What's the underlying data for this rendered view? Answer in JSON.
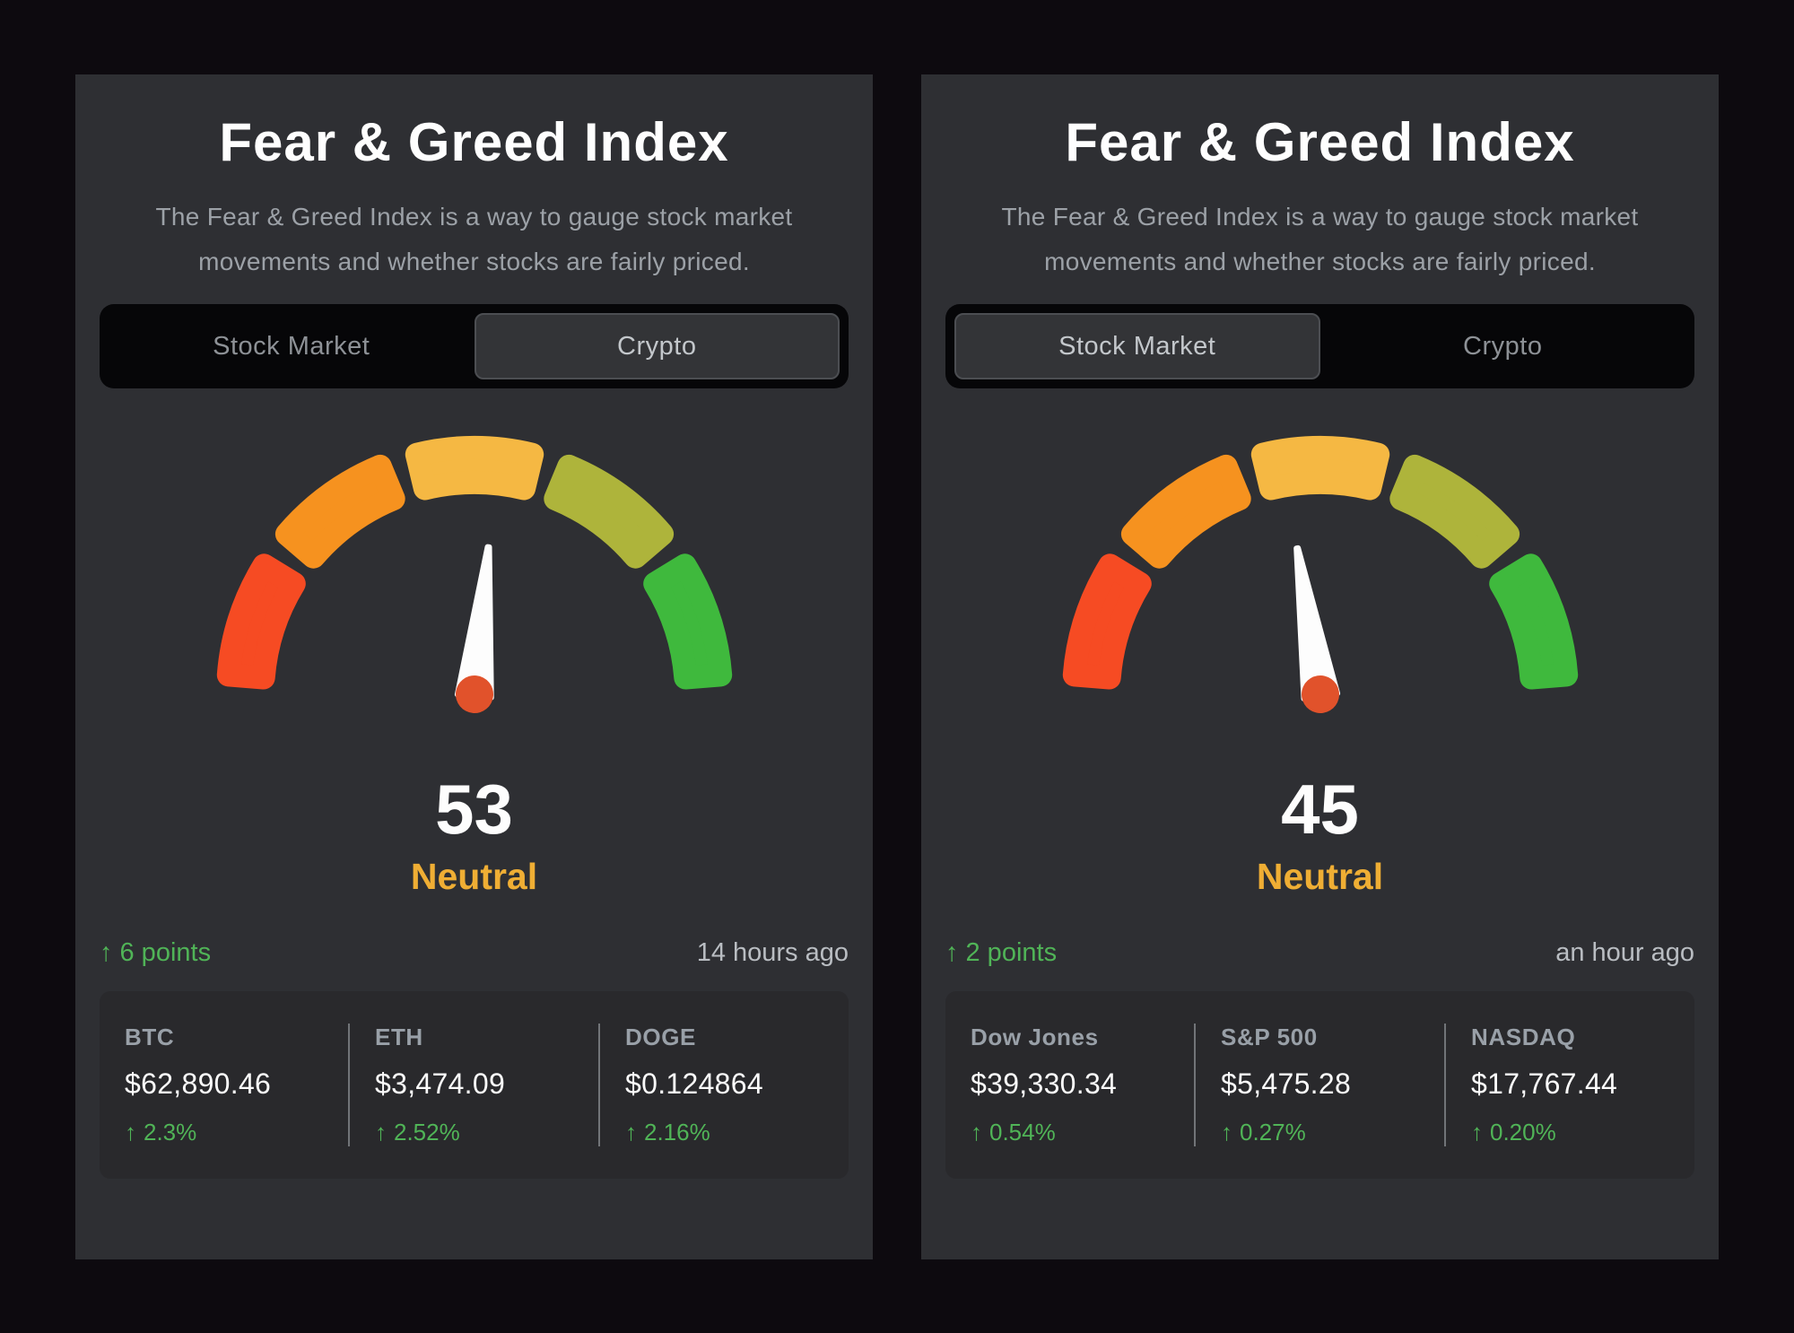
{
  "colors": {
    "page_bg": "#0D0A0F",
    "card_bg": "#2E2F33",
    "panel_bg": "#29292C",
    "accent_green": "#50B457",
    "sentiment_amber": "#EFAE34",
    "gauge_red": "#F64B23",
    "gauge_orange": "#F6921F",
    "gauge_amber": "#F5B843",
    "gauge_olive": "#AEB43B",
    "gauge_green": "#3FB93D",
    "needle_white": "#FDFDFD",
    "needle_hub": "#E1522B"
  },
  "icons": {
    "up_arrow": "↑"
  },
  "cards": [
    {
      "title": "Fear & Greed Index",
      "description": "The Fear & Greed Index is a way to gauge stock market movements and whether stocks are fairly priced.",
      "tabs": [
        {
          "label": "Stock Market",
          "selected": false
        },
        {
          "label": "Crypto",
          "selected": true
        }
      ],
      "gauge": {
        "value": "53",
        "sentiment": "Neutral"
      },
      "change": {
        "direction": "up",
        "text": "6 points"
      },
      "updated": "14 hours ago",
      "stats": [
        {
          "label": "BTC",
          "value": "$62,890.46",
          "change": "2.3%"
        },
        {
          "label": "ETH",
          "value": "$3,474.09",
          "change": "2.52%"
        },
        {
          "label": "DOGE",
          "value": "$0.124864",
          "change": "2.16%"
        }
      ]
    },
    {
      "title": "Fear & Greed Index",
      "description": "The Fear & Greed Index is a way to gauge stock market movements and whether stocks are fairly priced.",
      "tabs": [
        {
          "label": "Stock Market",
          "selected": true
        },
        {
          "label": "Crypto",
          "selected": false
        }
      ],
      "gauge": {
        "value": "45",
        "sentiment": "Neutral"
      },
      "change": {
        "direction": "up",
        "text": "2 points"
      },
      "updated": "an hour ago",
      "stats": [
        {
          "label": "Dow Jones",
          "value": "$39,330.34",
          "change": "0.54%"
        },
        {
          "label": "S&P 500",
          "value": "$5,475.28",
          "change": "0.27%"
        },
        {
          "label": "NASDAQ",
          "value": "$17,767.44",
          "change": "0.20%"
        }
      ]
    }
  ]
}
